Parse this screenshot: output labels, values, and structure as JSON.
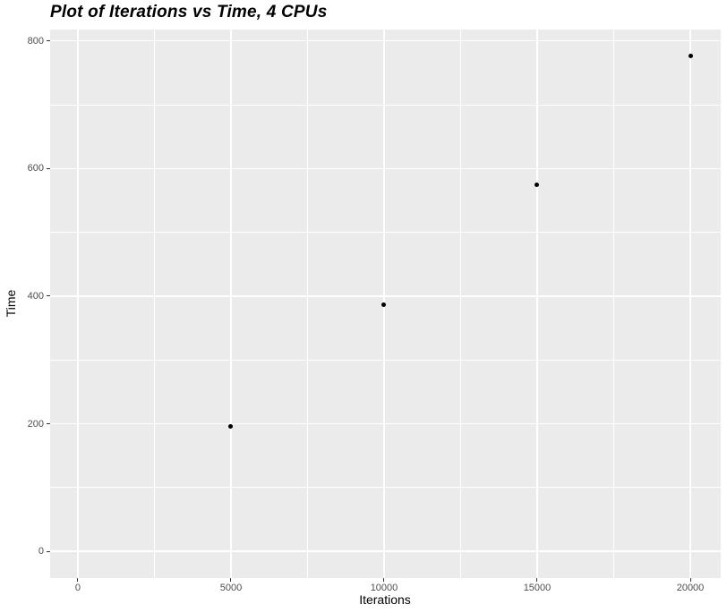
{
  "title": "Plot of Iterations vs Time, 4 CPUs",
  "chart_data": {
    "type": "scatter",
    "title": "Plot of Iterations vs Time, 4 CPUs",
    "xlabel": "Iterations",
    "ylabel": "Time",
    "x": [
      5000,
      10000,
      15000,
      20000
    ],
    "y": [
      196,
      386,
      575,
      776
    ],
    "xlim": [
      -906,
      20994
    ],
    "ylim": [
      -42,
      818
    ],
    "x_ticks": [
      0,
      5000,
      10000,
      15000,
      20000
    ],
    "x_tick_labels": [
      "0",
      "5000",
      "10000",
      "15000",
      "20000"
    ],
    "y_ticks": [
      0,
      200,
      400,
      600,
      800
    ],
    "y_tick_labels": [
      "0",
      "200",
      "400",
      "600",
      "800"
    ],
    "x_minor_ticks": [
      2500,
      7500,
      12500,
      17500
    ],
    "y_minor_ticks": [
      100,
      300,
      500,
      700
    ],
    "grid": true,
    "legend": false,
    "style": {
      "panel_bg": "#ebebeb",
      "grid_color": "#ffffff",
      "point_color": "#000000",
      "tick_color": "#333333",
      "tick_label_color": "#4d4d4d",
      "axis_title_color": "#000000",
      "title_color": "#000000"
    }
  }
}
